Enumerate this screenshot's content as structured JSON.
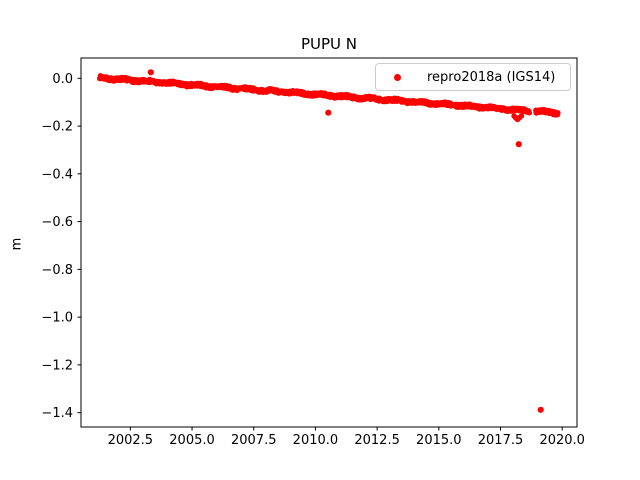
{
  "figure": {
    "background": "#ffffff"
  },
  "axes": {
    "spine_color": "#000000",
    "tick_color": "#000000",
    "text_color": "#000000"
  },
  "chart_data": {
    "type": "scatter",
    "title": "PUPU N",
    "xlabel": "",
    "ylabel": "m",
    "xlim": [
      2000.5,
      2020.6
    ],
    "ylim": [
      -1.46,
      0.085
    ],
    "grid": false,
    "x_ticks": [
      2002.5,
      2005.0,
      2007.5,
      2010.0,
      2012.5,
      2015.0,
      2017.5,
      2020.0
    ],
    "x_tick_labels": [
      "2002.5",
      "2005.0",
      "2007.5",
      "2010.0",
      "2012.5",
      "2015.0",
      "2017.5",
      "2020.0"
    ],
    "y_ticks": [
      0.0,
      -0.2,
      -0.4,
      -0.6,
      -0.8,
      -1.0,
      -1.2,
      -1.4
    ],
    "y_tick_labels": [
      "0.0",
      "−0.2",
      "−0.4",
      "−0.6",
      "−0.8",
      "−1.0",
      "−1.2",
      "−1.4"
    ],
    "legend": {
      "position": "upper right",
      "entries": [
        {
          "label": "repro2018a (IGS14)",
          "color": "#ff0000",
          "marker": "point"
        }
      ]
    },
    "series": [
      {
        "name": "repro2018a (IGS14)",
        "color": "#ff0000",
        "marker": "point",
        "trend_band": {
          "description": "dense daily position scatter, approximately linear drift",
          "x_start": 2001.26,
          "x_end": 2019.82,
          "y_start": 0.002,
          "y_end": -0.145,
          "slope_m_per_yr": -0.0079,
          "noise_amplitude": 0.006,
          "annual_wiggle_amplitude": 0.003,
          "n_points": 1300,
          "seed": 7,
          "gaps_x": [
            [
              2018.67,
              2018.92
            ]
          ]
        },
        "dip_cluster": [
          [
            2018.05,
            -0.158
          ],
          [
            2018.12,
            -0.166
          ],
          [
            2018.19,
            -0.172
          ],
          [
            2018.27,
            -0.165
          ],
          [
            2018.35,
            -0.157
          ]
        ],
        "outliers": [
          [
            2003.33,
            0.025
          ],
          [
            2010.52,
            -0.144
          ],
          [
            2018.24,
            -0.276
          ],
          [
            2019.13,
            -1.388
          ]
        ]
      }
    ]
  }
}
